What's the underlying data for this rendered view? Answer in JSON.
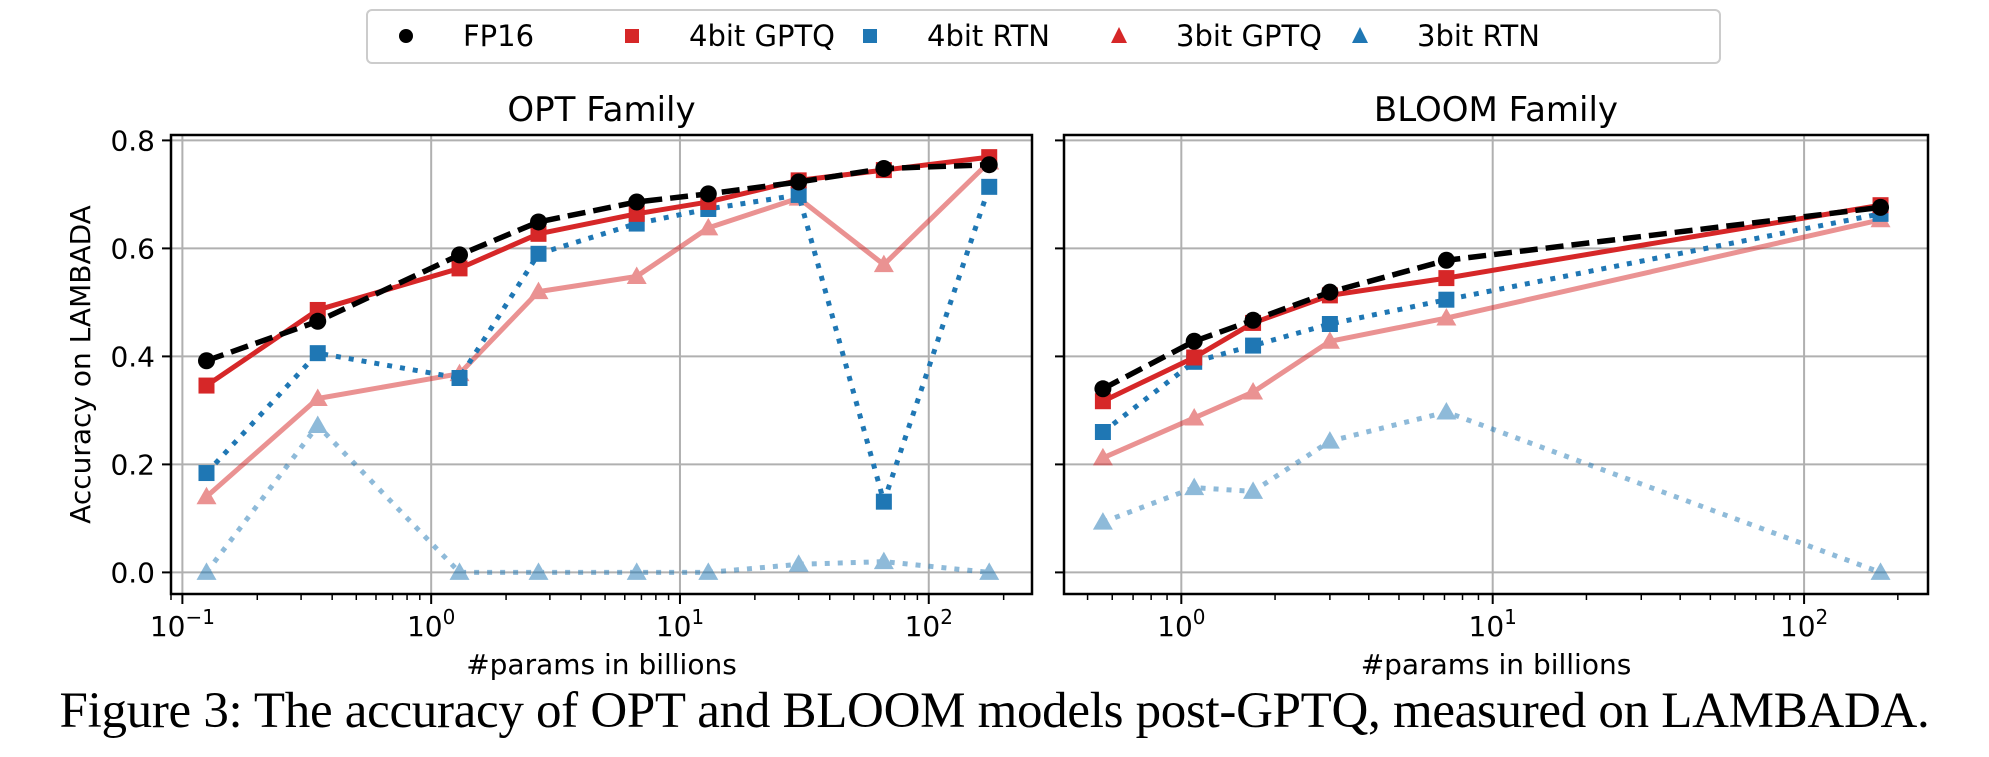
{
  "legend": {
    "placement": "top-center",
    "entries": [
      {
        "label": "FP16",
        "color": "#000000",
        "marker": "circle",
        "line": "dashed",
        "alpha": 1.0
      },
      {
        "label": "4bit GPTQ",
        "color": "#d62728",
        "marker": "square",
        "line": "solid",
        "alpha": 1.0
      },
      {
        "label": "4bit RTN",
        "color": "#1f77b4",
        "marker": "square",
        "line": "dotted",
        "alpha": 1.0
      },
      {
        "label": "3bit GPTQ",
        "color": "#d62728",
        "marker": "triangle",
        "line": "solid",
        "alpha": 0.5
      },
      {
        "label": "3bit RTN",
        "color": "#1f77b4",
        "marker": "triangle",
        "line": "dotted",
        "alpha": 0.5
      }
    ]
  },
  "caption": "Figure 3: The accuracy of OPT and BLOOM models post-GPTQ, measured on LAMBADA.",
  "chart_data": [
    {
      "type": "line",
      "title": "OPT Family",
      "xlabel": "#params in billions",
      "ylabel": "Accuracy on LAMBADA",
      "xscale": "log",
      "xlim": [
        0.09,
        260
      ],
      "ylim": [
        -0.04,
        0.81
      ],
      "xticks": [
        0.1,
        1,
        10,
        100
      ],
      "xtick_labels": [
        {
          "base": "10",
          "exp": "−1"
        },
        {
          "base": "10",
          "exp": "0"
        },
        {
          "base": "10",
          "exp": "1"
        },
        {
          "base": "10",
          "exp": "2"
        }
      ],
      "yticks": [
        0.0,
        0.2,
        0.4,
        0.6,
        0.8
      ],
      "ytick_labels": [
        "0.0",
        "0.2",
        "0.4",
        "0.6",
        "0.8"
      ],
      "grid": true,
      "x": [
        0.125,
        0.35,
        1.3,
        2.7,
        6.7,
        13,
        30,
        66,
        175
      ],
      "series": [
        {
          "name": "FP16",
          "values": [
            0.392,
            0.465,
            0.588,
            0.649,
            0.686,
            0.701,
            0.723,
            0.748,
            0.755
          ]
        },
        {
          "name": "4bit GPTQ",
          "values": [
            0.346,
            0.486,
            0.563,
            0.627,
            0.664,
            0.686,
            0.726,
            0.745,
            0.769
          ]
        },
        {
          "name": "4bit RTN",
          "values": [
            0.184,
            0.406,
            0.36,
            0.59,
            0.646,
            0.673,
            0.699,
            0.131,
            0.714
          ]
        },
        {
          "name": "3bit GPTQ",
          "values": [
            0.14,
            0.322,
            0.368,
            0.52,
            0.548,
            0.638,
            0.693,
            0.57,
            0.76
          ]
        },
        {
          "name": "3bit RTN",
          "values": [
            0.0,
            0.272,
            0.0,
            0.0,
            0.0,
            0.0,
            0.015,
            0.02,
            0.0
          ]
        }
      ]
    },
    {
      "type": "line",
      "title": "BLOOM Family",
      "xlabel": "#params in billions",
      "ylabel": "",
      "xscale": "log",
      "xlim": [
        0.42,
        250
      ],
      "ylim": [
        -0.04,
        0.81
      ],
      "xticks": [
        1,
        10,
        100
      ],
      "xtick_labels": [
        {
          "base": "10",
          "exp": "0"
        },
        {
          "base": "10",
          "exp": "1"
        },
        {
          "base": "10",
          "exp": "2"
        }
      ],
      "yticks": [
        0.0,
        0.2,
        0.4,
        0.6,
        0.8
      ],
      "ytick_labels": [],
      "grid": true,
      "x": [
        0.56,
        1.1,
        1.7,
        3.0,
        7.1,
        176
      ],
      "series": [
        {
          "name": "FP16",
          "values": [
            0.34,
            0.428,
            0.467,
            0.519,
            0.578,
            0.676
          ]
        },
        {
          "name": "4bit GPTQ",
          "values": [
            0.317,
            0.398,
            0.462,
            0.513,
            0.545,
            0.68
          ]
        },
        {
          "name": "4bit RTN",
          "values": [
            0.26,
            0.39,
            0.42,
            0.46,
            0.505,
            0.664
          ]
        },
        {
          "name": "3bit GPTQ",
          "values": [
            0.212,
            0.286,
            0.334,
            0.428,
            0.471,
            0.653
          ]
        },
        {
          "name": "3bit RTN",
          "values": [
            0.093,
            0.157,
            0.15,
            0.243,
            0.297,
            0.0
          ]
        }
      ]
    }
  ]
}
